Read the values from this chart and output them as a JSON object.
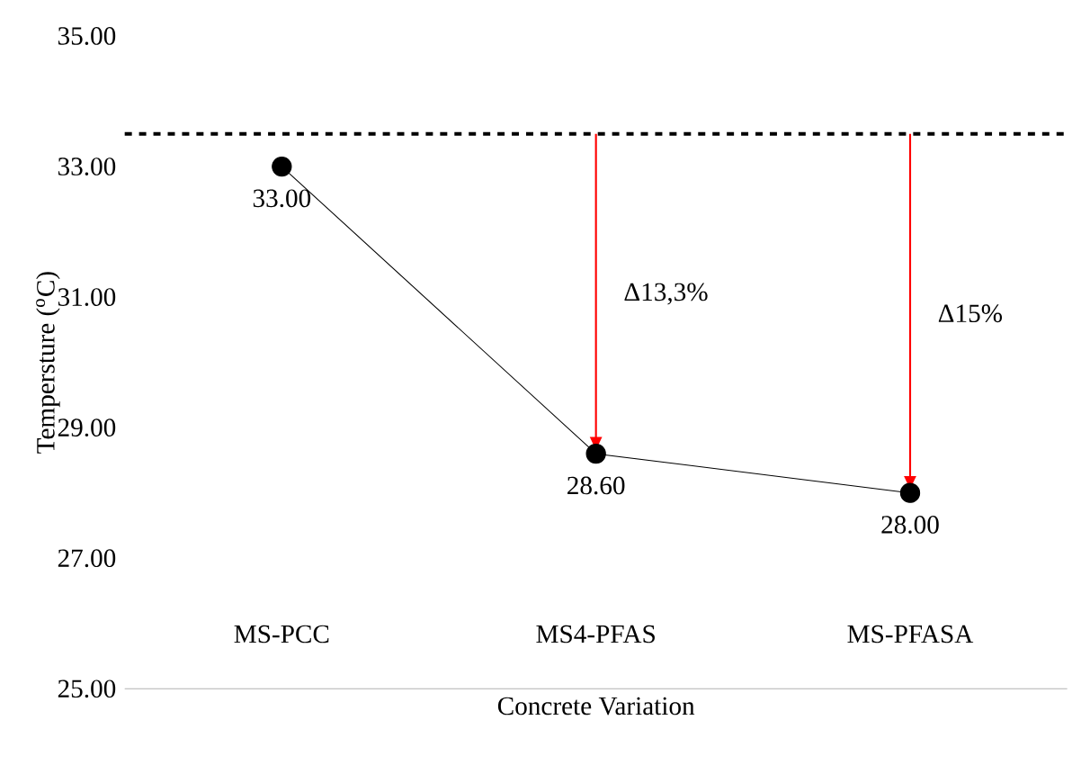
{
  "chart_data": {
    "type": "line",
    "xlabel": "Concrete Variation",
    "ylabel": "Tempersture ($^{o}$C)",
    "categories": [
      "MS-PCC",
      "MS4-PFAS",
      "MS-PFASA"
    ],
    "series": [
      {
        "color": "#000000",
        "values": [
          33.0,
          28.6,
          28.0
        ]
      }
    ],
    "value_labels": [
      "33.00",
      "28.60",
      "28.00"
    ],
    "ylim": [
      25,
      35
    ],
    "yticks": [
      {
        "value": 25,
        "label": "25.00"
      },
      {
        "value": 27,
        "label": "27.00"
      },
      {
        "value": 29,
        "label": "29.00"
      },
      {
        "value": 31,
        "label": "31.00"
      },
      {
        "value": 33,
        "label": "33.00"
      },
      {
        "value": 35,
        "label": "35.00"
      }
    ],
    "marker": "circle",
    "line_style": "solid",
    "grid": false,
    "ref_lines": [
      {
        "axis": "y",
        "value": 33.5,
        "color": "#000000",
        "line_style": "dashed"
      }
    ],
    "annotations": [
      "Δ13,3%",
      "Δ15%"
    ]
  }
}
